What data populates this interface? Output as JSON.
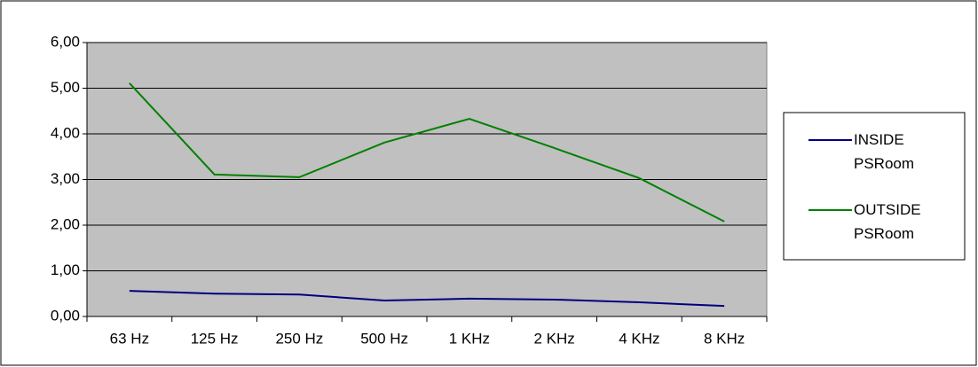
{
  "chart_data": {
    "type": "line",
    "categories": [
      "63 Hz",
      "125 Hz",
      "250 Hz",
      "500 Hz",
      "1 KHz",
      "2 KHz",
      "4 KHz",
      "8 KHz"
    ],
    "series": [
      {
        "name": "INSIDE PSRoom",
        "color": "#000080",
        "values": [
          0.56,
          0.5,
          0.48,
          0.35,
          0.39,
          0.37,
          0.31,
          0.23
        ]
      },
      {
        "name": "OUTSIDE PSRoom",
        "color": "#008000",
        "values": [
          5.11,
          3.11,
          3.05,
          3.81,
          4.33,
          3.69,
          3.03,
          2.08
        ]
      }
    ],
    "ylim": [
      0,
      6
    ],
    "yticks": [
      {
        "value": 0,
        "label": "0,00"
      },
      {
        "value": 1,
        "label": "1,00"
      },
      {
        "value": 2,
        "label": "2,00"
      },
      {
        "value": 3,
        "label": "3,00"
      },
      {
        "value": 4,
        "label": "4,00"
      },
      {
        "value": 5,
        "label": "5,00"
      },
      {
        "value": 6,
        "label": "6,00"
      }
    ],
    "grid": true,
    "plot_background": "#c0c0c0",
    "legend": "right"
  }
}
